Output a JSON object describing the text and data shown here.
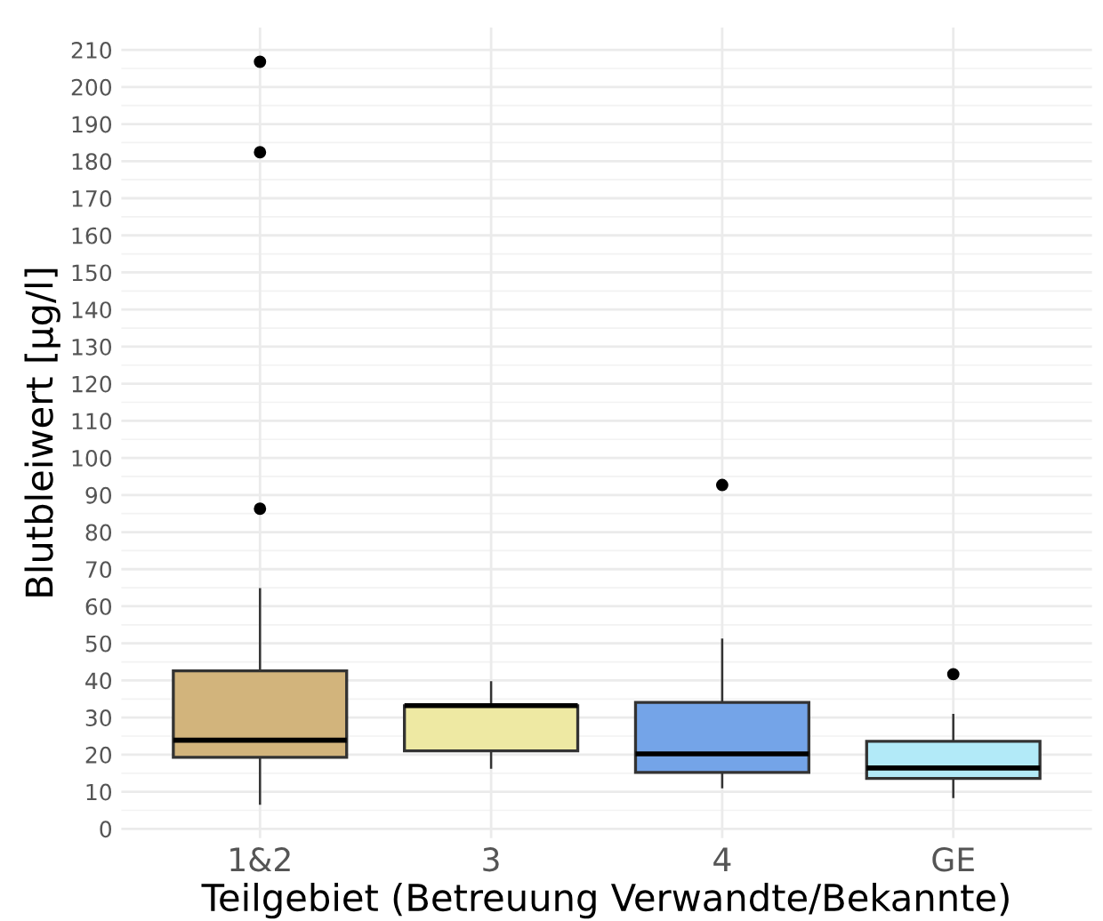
{
  "chart_data": {
    "type": "box",
    "categories": [
      "1&2",
      "3",
      "4",
      "GE"
    ],
    "xlabel": "Teilgebiet (Betreuung Verwandte/Bekannte)",
    "ylabel": "Blutbleiwert [µg/l]",
    "series": [
      {
        "colors": [
          "#d2b47c",
          "#eee9a3",
          "#74a4e8",
          "#b2eaf8"
        ],
        "boxes": [
          {
            "low": 6.8,
            "q1": 19.3,
            "median": 23.9,
            "q3": 42.6,
            "high": 64.6,
            "outliers": [
              86.3,
              182.4,
              206.8
            ]
          },
          {
            "low": 16.5,
            "q1": 21,
            "median": 33.2,
            "q3": 33.2,
            "high": 39.5
          },
          {
            "low": 11.2,
            "q1": 15.2,
            "median": 20.2,
            "q3": 34.1,
            "high": 51,
            "outliers": [
              92.7
            ]
          },
          {
            "low": 8.6,
            "q1": 13.6,
            "median": 16.4,
            "q3": 23.6,
            "high": 30.7,
            "outliers": [
              41.7
            ]
          }
        ]
      }
    ],
    "ylim": [
      -2.5,
      216
    ],
    "yticks": [
      0,
      10,
      20,
      30,
      40,
      50,
      60,
      70,
      80,
      90,
      100,
      110,
      120,
      130,
      140,
      150,
      160,
      170,
      180,
      190,
      200,
      210
    ],
    "grid": true
  }
}
